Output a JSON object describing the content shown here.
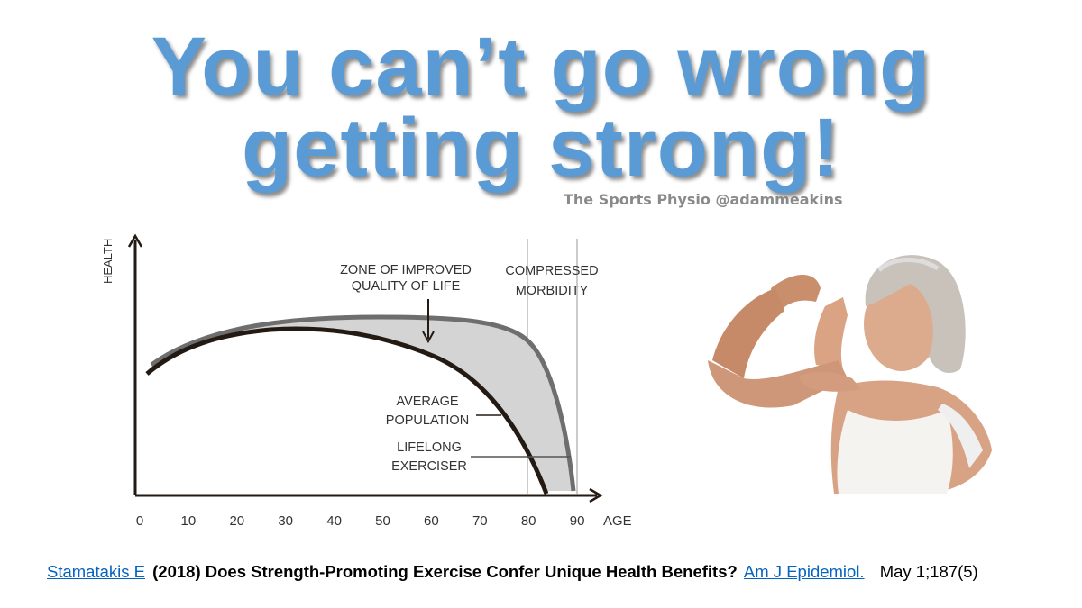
{
  "title": {
    "lines": [
      "You can’t go wrong",
      "getting strong!"
    ]
  },
  "credit": "The Sports Physio @adammeakins",
  "diagram": {
    "y_label": "HEALTH",
    "x_label": "AGE",
    "x_ticks": [
      0,
      10,
      20,
      30,
      40,
      50,
      60,
      70,
      80,
      90
    ],
    "annotations": {
      "zone": [
        "ZONE OF IMPROVED",
        "QUALITY OF LIFE"
      ],
      "morbidity": [
        "COMPRESSED",
        "MORBIDITY"
      ],
      "average": [
        "AVERAGE",
        "POPULATION"
      ],
      "exerciser": [
        "LIFELONG",
        "EXERCISER"
      ]
    }
  },
  "citation": {
    "author": "Stamatakis E",
    "title": "(2018) Does Strength-Promoting Exercise Confer Unique Health Benefits?",
    "journal": "Am J Epidemiol.",
    "issue": "May 1;187(5)"
  }
}
